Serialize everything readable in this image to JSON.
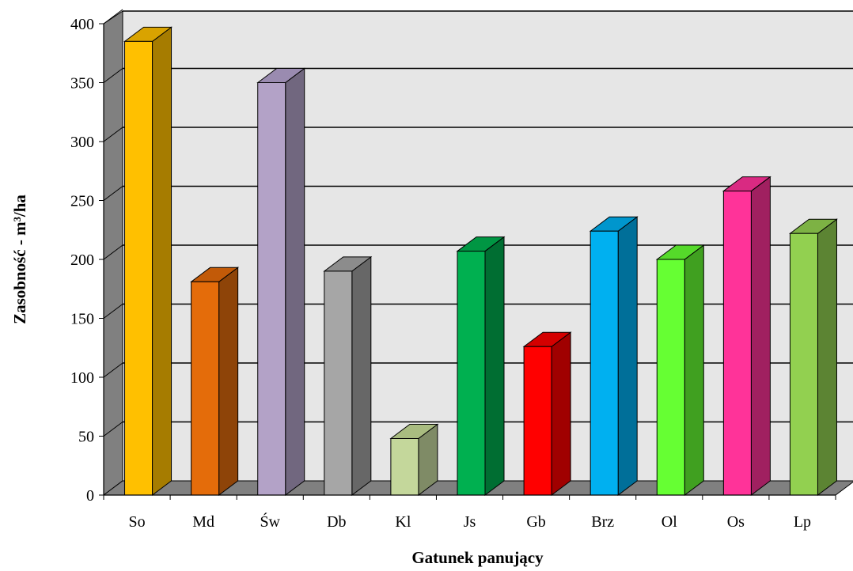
{
  "chart_data": {
    "type": "bar",
    "title": "",
    "xlabel": "Gatunek panujący",
    "ylabel": "Zasobność - m³/ha",
    "ylim": [
      0,
      400
    ],
    "yticks": [
      0,
      50,
      100,
      150,
      200,
      250,
      300,
      350,
      400
    ],
    "grid": true,
    "legend": "none",
    "categories": [
      "So",
      "Md",
      "Św",
      "Db",
      "Kl",
      "Js",
      "Gb",
      "Brz",
      "Ol",
      "Os",
      "Lp"
    ],
    "values": [
      385,
      181,
      350,
      190,
      48,
      207,
      126,
      224,
      200,
      258,
      222
    ],
    "colors": [
      {
        "front": "#FFC000",
        "side": "#A67C00",
        "top": "#D9A300"
      },
      {
        "front": "#E46C0A",
        "side": "#8E4408",
        "top": "#C25A08"
      },
      {
        "front": "#B3A2C7",
        "side": "#71677F",
        "top": "#9A8BB0"
      },
      {
        "front": "#A6A6A6",
        "side": "#676767",
        "top": "#8C8C8C"
      },
      {
        "front": "#C4D79B",
        "side": "#7F8B66",
        "top": "#A9BC80"
      },
      {
        "front": "#00B050",
        "side": "#006E32",
        "top": "#009643"
      },
      {
        "front": "#FF0000",
        "side": "#A00000",
        "top": "#D40000"
      },
      {
        "front": "#00B0F0",
        "side": "#006F99",
        "top": "#0096CD"
      },
      {
        "front": "#66FF33",
        "side": "#40A020",
        "top": "#55D92A"
      },
      {
        "front": "#FF3399",
        "side": "#A02060",
        "top": "#D92A82"
      },
      {
        "front": "#92D050",
        "side": "#5C8433",
        "top": "#7DB244"
      }
    ],
    "wall_color": "#E6E6E6",
    "floor_color": "#808080"
  }
}
